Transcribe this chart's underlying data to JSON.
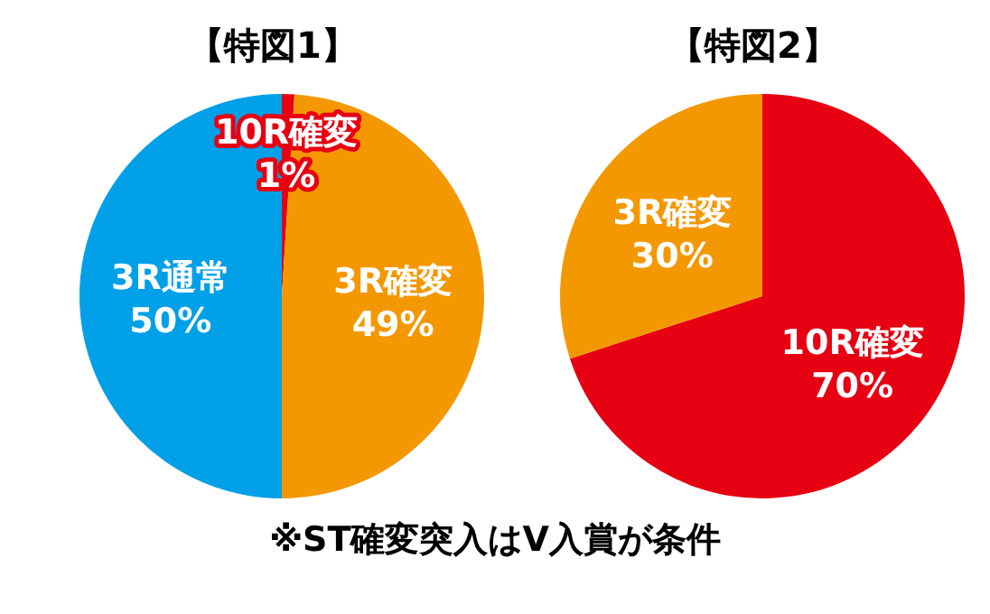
{
  "chart_data": [
    {
      "type": "pie",
      "title": "【特図1】",
      "categories": [
        "10R確変",
        "3R確変",
        "3R通常"
      ],
      "values": [
        1,
        49,
        50
      ],
      "colors": [
        "#e60012",
        "#f39800",
        "#00a0e9"
      ],
      "value_labels": [
        "1%",
        "49%",
        "50%"
      ],
      "annotations": [
        "※ST確変突入はV入賞が条件"
      ]
    },
    {
      "type": "pie",
      "title": "【特図2】",
      "categories": [
        "10R確変",
        "3R確変"
      ],
      "values": [
        70,
        30
      ],
      "colors": [
        "#e60012",
        "#f39800"
      ],
      "value_labels": [
        "70%",
        "30%"
      ]
    }
  ]
}
